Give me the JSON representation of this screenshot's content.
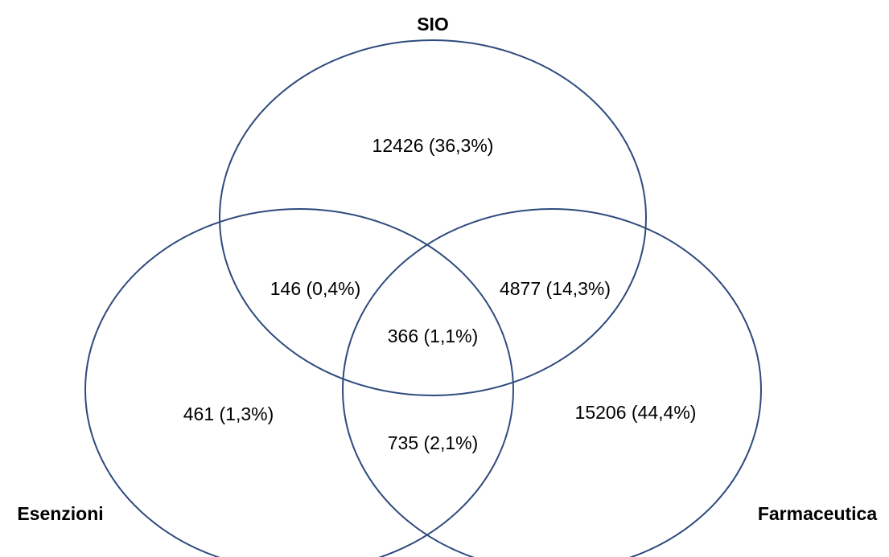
{
  "sets": {
    "sio": {
      "label": "SIO"
    },
    "esenzioni": {
      "label": "Esenzioni"
    },
    "farmaceutica": {
      "label": "Farmaceutica"
    }
  },
  "regions": {
    "sio_only": "12426 (36,3%)",
    "sio_esenzioni": "146 (0,4%)",
    "sio_farmaceutica": "4877 (14,3%)",
    "all_three": "366 (1,1%)",
    "esenzioni_only": "461 (1,3%)",
    "esenzioni_farmaceutica": "735 (2,1%)",
    "farmaceutica_only": "15206 (44,4%)"
  },
  "colors": {
    "circle_stroke": "#2e4a7d"
  }
}
